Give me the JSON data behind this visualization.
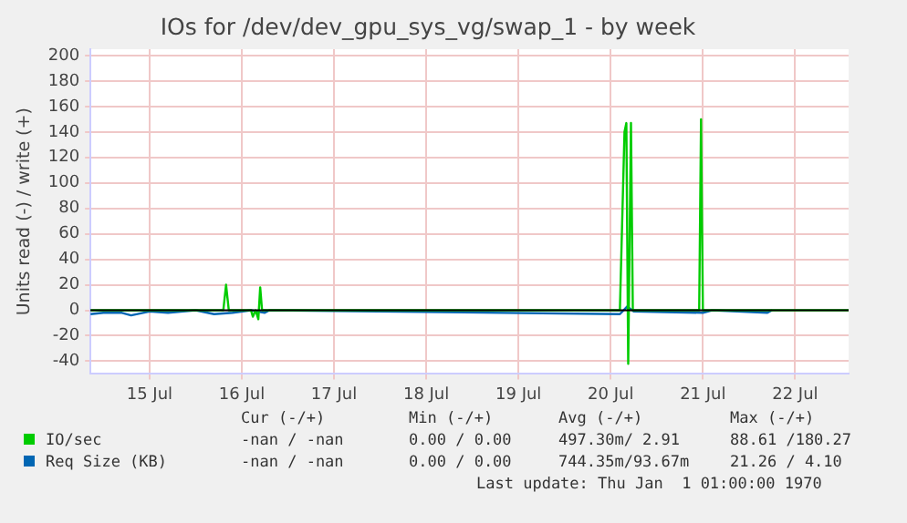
{
  "chart_data": {
    "type": "line",
    "title": "IOs for /dev/dev_gpu_sys_vg/swap_1 - by week",
    "ylabel": "Units read (-) / write (+)",
    "xlim": [
      "--07-14T20:38",
      "--07-23T01:55"
    ],
    "xticks": [
      {
        "value": "--07-15T12:00",
        "label": "15 Jul"
      },
      {
        "value": "--07-16T12:00",
        "label": "16 Jul"
      },
      {
        "value": "--07-17T12:00",
        "label": "17 Jul"
      },
      {
        "value": "--07-18T12:00",
        "label": "18 Jul"
      },
      {
        "value": "--07-19T12:00",
        "label": "19 Jul"
      },
      {
        "value": "--07-20T12:00",
        "label": "20 Jul"
      },
      {
        "value": "--07-21T12:00",
        "label": "21 Jul"
      },
      {
        "value": "--07-22T12:00",
        "label": "22 Jul"
      }
    ],
    "ylim": [
      -50,
      205
    ],
    "yticks": [
      -40,
      -20,
      0,
      20,
      40,
      60,
      80,
      100,
      120,
      140,
      160,
      180,
      200
    ],
    "grid": true,
    "legend": "bottom",
    "marker": "none",
    "line_style": "solid",
    "ref_lines": [
      {
        "axis": "y",
        "value": 0,
        "color": "#000000"
      }
    ],
    "series": [
      {
        "name": "IO/sec",
        "color": "#00cc00",
        "x": [
          "--07-14T20:38",
          "--07-16T07:12",
          "--07-16T07:55",
          "--07-16T08:38",
          "--07-16T14:24",
          "--07-16T14:53",
          "--07-16T15:36",
          "--07-16T16:19",
          "--07-16T16:48",
          "--07-16T17:17",
          "--07-20T14:24",
          "--07-20T15:36",
          "--07-20T16:05",
          "--07-20T16:34",
          "--07-20T17:17",
          "--07-20T17:46",
          "--07-21T11:02",
          "--07-21T11:31",
          "--07-21T12:00",
          "--07-23T01:55"
        ],
        "values": [
          0,
          0,
          20,
          0,
          0,
          -5,
          0,
          -7,
          18,
          0,
          0,
          140,
          147,
          -42,
          147,
          0,
          0,
          150,
          0,
          0
        ]
      },
      {
        "name": "Req Size (KB)",
        "color": "#0066b3",
        "x": [
          "--07-14T20:38",
          "--07-15T00:00",
          "--07-15T04:48",
          "--07-15T07:12",
          "--07-15T12:00",
          "--07-15T16:48",
          "--07-16T00:00",
          "--07-16T04:48",
          "--07-16T09:36",
          "--07-16T14:24",
          "--07-16T18:00",
          "--07-16T19:12",
          "--07-20T14:24",
          "--07-20T16:19",
          "--07-20T18:00",
          "--07-21T12:00",
          "--07-21T14:24",
          "--07-22T04:48",
          "--07-22T06:00"
        ],
        "values": [
          -3,
          -2,
          -2,
          -4,
          -1,
          -2,
          0,
          -3,
          -2,
          0,
          -2,
          0,
          -3,
          3,
          -1,
          -2,
          0,
          -2,
          0
        ]
      }
    ],
    "annotations": [
      "Cur (-/+)",
      "Min (-/+)",
      "Avg (-/+)",
      "Max (-/+)",
      "-nan / -nan",
      "0.00 / 0.00",
      "497.30m/ 2.91",
      "88.61 /180.27",
      "-nan / -nan",
      "0.00 / 0.00",
      "744.35m/93.67m",
      "21.26 / 4.10",
      "Last update: Thu Jan  1 01:00:00 1970"
    ]
  }
}
